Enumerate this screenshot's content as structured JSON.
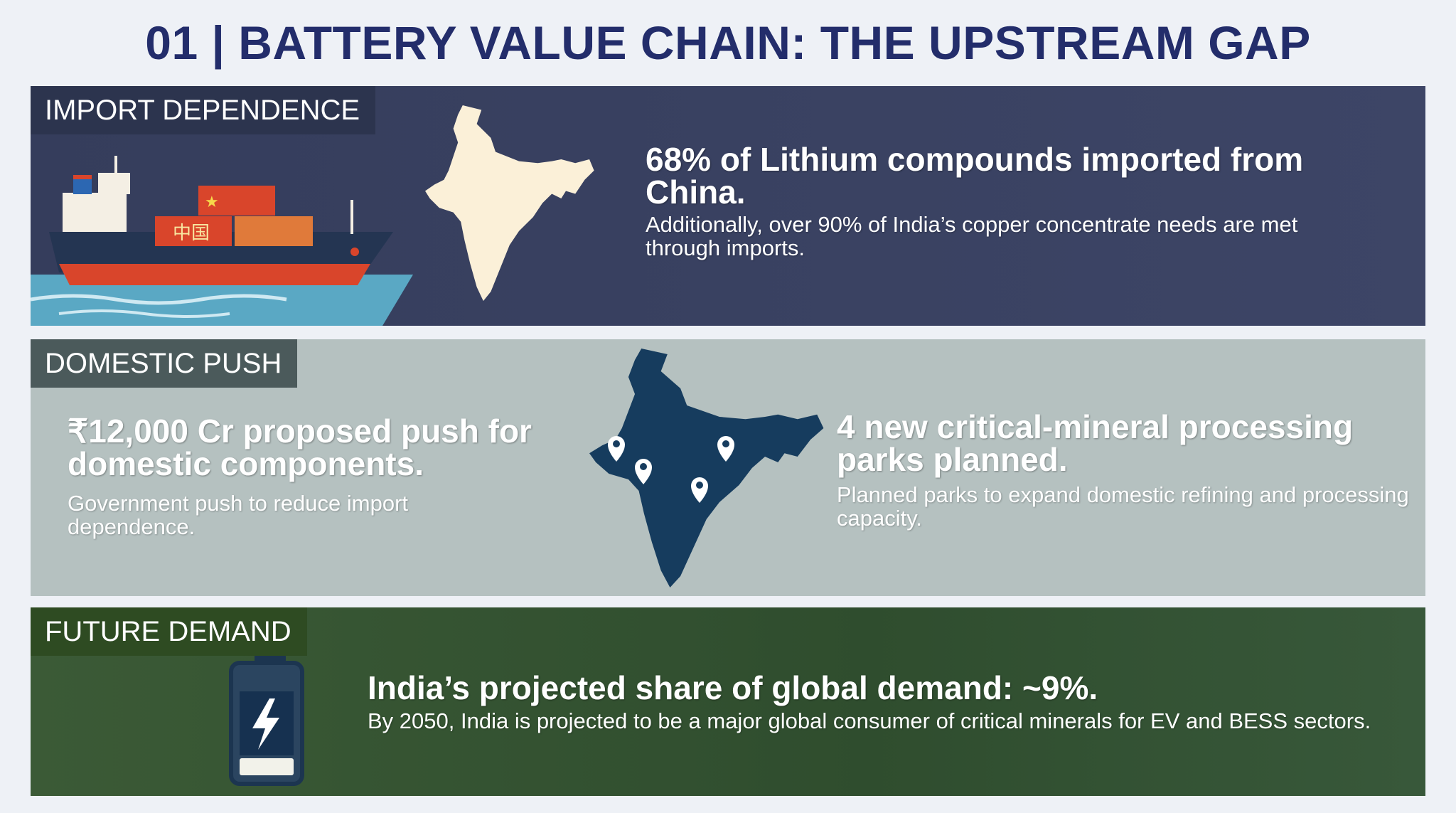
{
  "header": {
    "title": "01 | BATTERY VALUE CHAIN: THE UPSTREAM GAP"
  },
  "sections": [
    {
      "label": "IMPORT DEPENDENCE",
      "items": [
        {
          "headline": "68% of Lithium compounds imported from China.",
          "body": "Additionally, over 90% of India’s copper concentrate needs are met through imports."
        }
      ]
    },
    {
      "label": "DOMESTIC PUSH",
      "items": [
        {
          "headline": "₹12,000 Cr proposed push for domestic components.",
          "body": "Government push to reduce import dependence."
        },
        {
          "headline": "4 new critical-mineral processing parks planned.",
          "body": "Planned parks to expand domestic refining and processing capacity."
        }
      ]
    },
    {
      "label": "FUTURE DEMAND",
      "items": [
        {
          "headline": "India’s projected share of global demand: ~9%.",
          "body": "By 2050, India is projected to be a major global consumer of critical minerals for EV and BESS sectors."
        }
      ]
    }
  ]
}
